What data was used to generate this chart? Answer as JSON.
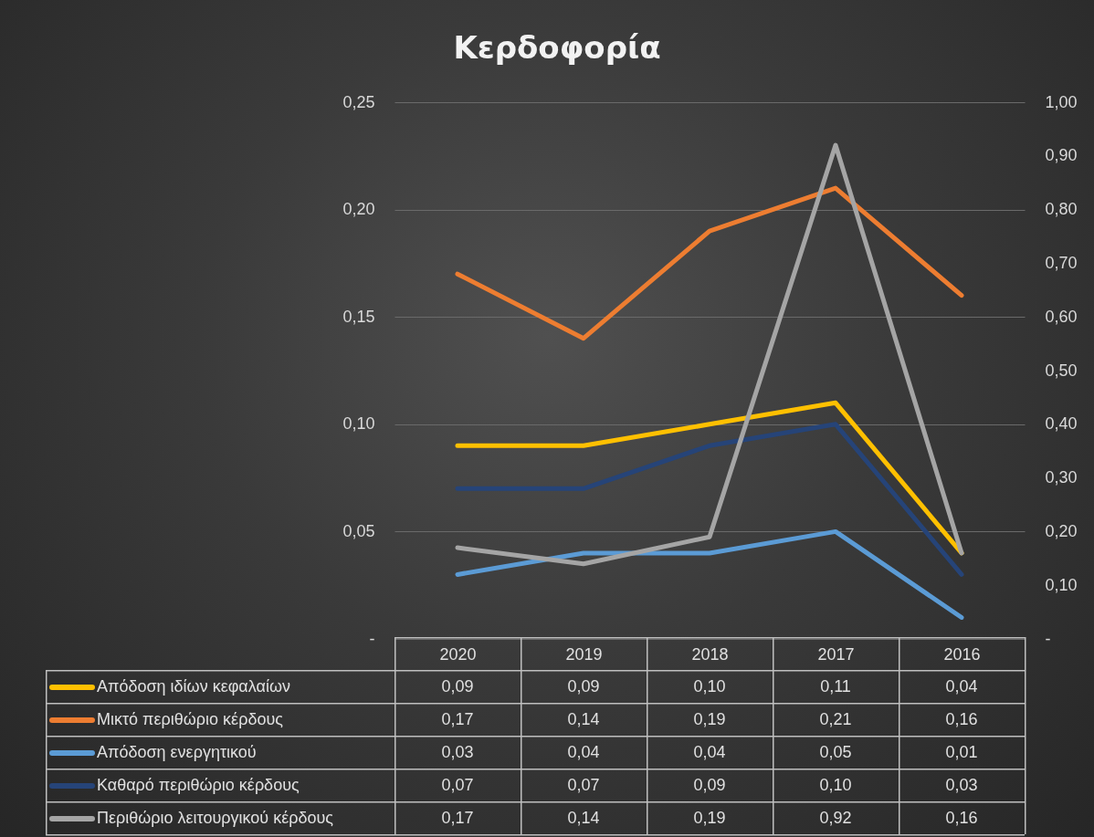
{
  "chart_data": {
    "type": "line",
    "title": "Κερδοφορία",
    "categories": [
      "2020",
      "2019",
      "2018",
      "2017",
      "2016"
    ],
    "series": [
      {
        "name": "Απόδοση ιδίων κεφαλαίων",
        "color": "#ffc000",
        "values": [
          0.09,
          0.09,
          0.1,
          0.11,
          0.04
        ],
        "value_labels": [
          "0,09",
          "0,09",
          "0,10",
          "0,11",
          "0,04"
        ]
      },
      {
        "name": "Μικτό περιθώριο κέρδους",
        "color": "#ed7d31",
        "values": [
          0.17,
          0.14,
          0.19,
          0.21,
          0.16
        ],
        "value_labels": [
          "0,17",
          "0,14",
          "0,19",
          "0,21",
          "0,16"
        ]
      },
      {
        "name": "Απόδοση ενεργητικού",
        "color": "#5b9bd5",
        "values": [
          0.03,
          0.04,
          0.04,
          0.05,
          0.01
        ],
        "value_labels": [
          "0,03",
          "0,04",
          "0,04",
          "0,05",
          "0,01"
        ]
      },
      {
        "name": "Καθαρό περιθώριο κέρδους",
        "color": "#264478",
        "values": [
          0.07,
          0.07,
          0.09,
          0.1,
          0.03
        ],
        "value_labels": [
          "0,07",
          "0,07",
          "0,09",
          "0,10",
          "0,03"
        ]
      },
      {
        "name": "Περιθώριο λειτουργικού κέρδους",
        "color": "#a5a5a5",
        "values": [
          0.17,
          0.14,
          0.19,
          0.92,
          0.16
        ],
        "value_labels": [
          "0,17",
          "0,14",
          "0,19",
          "0,92",
          "0,16"
        ],
        "axis": "y2"
      }
    ],
    "ylim": [
      0,
      0.25
    ],
    "yticks": [
      {
        "value": 0,
        "label": "-"
      },
      {
        "value": 0.05,
        "label": "0,05"
      },
      {
        "value": 0.1,
        "label": "0,10"
      },
      {
        "value": 0.15,
        "label": "0,15"
      },
      {
        "value": 0.2,
        "label": "0,20"
      },
      {
        "value": 0.25,
        "label": "0,25"
      }
    ],
    "y2lim": [
      0,
      1
    ],
    "y2ticks": [
      {
        "value": 0,
        "label": "-"
      },
      {
        "value": 0.1,
        "label": "0,10"
      },
      {
        "value": 0.2,
        "label": "0,20"
      },
      {
        "value": 0.3,
        "label": "0,30"
      },
      {
        "value": 0.4,
        "label": "0,40"
      },
      {
        "value": 0.5,
        "label": "0,50"
      },
      {
        "value": 0.6,
        "label": "0,60"
      },
      {
        "value": 0.7,
        "label": "0,70"
      },
      {
        "value": 0.8,
        "label": "0,80"
      },
      {
        "value": 0.9,
        "label": "0,90"
      },
      {
        "value": 1,
        "label": "1,00"
      }
    ],
    "grid": "y",
    "legend": "bottom",
    "marker": "none",
    "line_style": "solid"
  }
}
